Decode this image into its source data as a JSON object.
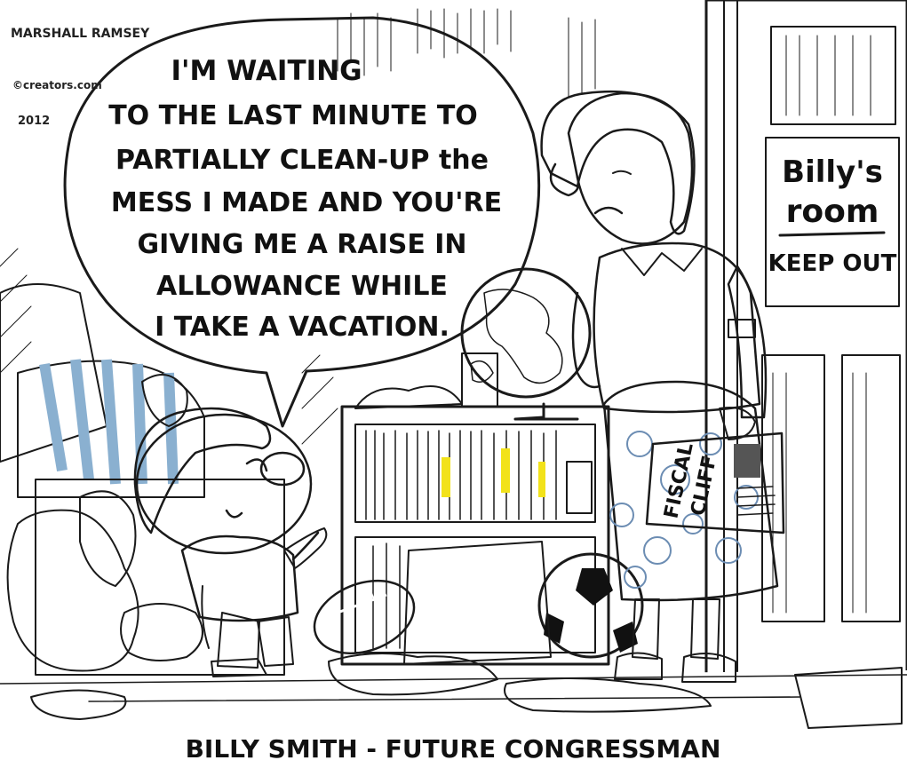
{
  "signature": {
    "artist": "MARSHALL RAMSEY",
    "source": "©creators.com",
    "year": "2012"
  },
  "speech_bubble": {
    "lines": [
      "I'M WAITING",
      "TO THE LAST MINUTE TO",
      "PARTIALLY CLEAN-UP the",
      "MESS I MADE AND YOU'RE",
      "GIVING ME A RAISE IN",
      "ALLOWANCE WHILE",
      "I TAKE A VACATION."
    ]
  },
  "door_sign": {
    "line1": "Billy's",
    "line2": "room",
    "line3": "KEEP OUT",
    "color": "#f2e600"
  },
  "newspaper": {
    "line1": "FISCAL",
    "line2": "CLIFF"
  },
  "caption": "BILLY SMITH - FUTURE CONGRESSMAN",
  "colors": {
    "mom_shirt": "#f07a1e",
    "boy_shirt": "#f2e21a",
    "globe_ocean": "#2f6fb0",
    "globe_land": "#8cc540",
    "bush": "#8cc540",
    "skirt": "#27415f"
  }
}
